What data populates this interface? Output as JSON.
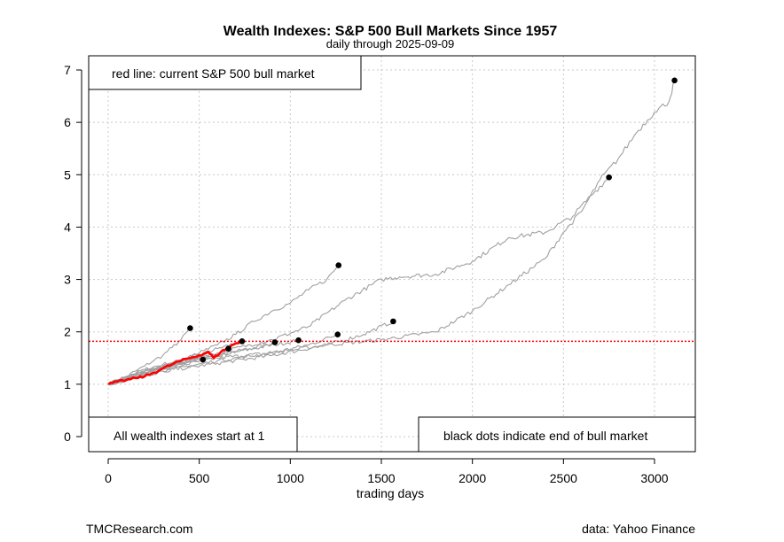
{
  "chart_data": {
    "type": "line",
    "title": "Wealth Indexes: S&P 500 Bull Markets Since 1957",
    "subtitle": "daily through 2025-09-09",
    "xlabel": "trading days",
    "ylabel": "",
    "xlim": [
      0,
      3200
    ],
    "ylim": [
      0,
      7
    ],
    "x_ticks": [
      "0",
      "500",
      "1000",
      "1500",
      "2000",
      "2500",
      "3000"
    ],
    "y_ticks": [
      "0",
      "1",
      "2",
      "3",
      "4",
      "5",
      "6",
      "7"
    ],
    "grid": true,
    "reference_line": {
      "y": 1.82,
      "color": "#ff0000",
      "style": "dotted"
    },
    "colors": {
      "historical": "#a0a0a0",
      "current": "#ff0000",
      "end_dot": "#000000"
    },
    "series": [
      {
        "current": false,
        "points": [
          [
            0,
            1.0
          ],
          [
            50,
            1.08
          ],
          [
            100,
            1.15
          ],
          [
            150,
            1.25
          ],
          [
            200,
            1.35
          ],
          [
            250,
            1.45
          ],
          [
            300,
            1.55
          ],
          [
            350,
            1.7
          ],
          [
            400,
            1.85
          ],
          [
            450,
            2.07
          ]
        ]
      },
      {
        "current": false,
        "points": [
          [
            0,
            1.0
          ],
          [
            100,
            1.15
          ],
          [
            200,
            1.28
          ],
          [
            300,
            1.38
          ],
          [
            400,
            1.45
          ],
          [
            450,
            1.55
          ],
          [
            520,
            1.47
          ]
        ]
      },
      {
        "current": false,
        "points": [
          [
            0,
            1.0
          ],
          [
            100,
            1.12
          ],
          [
            200,
            1.22
          ],
          [
            300,
            1.32
          ],
          [
            400,
            1.4
          ],
          [
            500,
            1.5
          ],
          [
            600,
            1.6
          ],
          [
            660,
            1.68
          ]
        ]
      },
      {
        "current": false,
        "points": [
          [
            0,
            1.0
          ],
          [
            150,
            1.18
          ],
          [
            300,
            1.35
          ],
          [
            450,
            1.5
          ],
          [
            600,
            1.68
          ],
          [
            735,
            1.82
          ]
        ]
      },
      {
        "current": false,
        "points": [
          [
            0,
            1.0
          ],
          [
            200,
            1.25
          ],
          [
            400,
            1.42
          ],
          [
            600,
            1.55
          ],
          [
            800,
            1.7
          ],
          [
            915,
            1.8
          ]
        ]
      },
      {
        "current": false,
        "points": [
          [
            0,
            1.0
          ],
          [
            200,
            1.2
          ],
          [
            400,
            1.38
          ],
          [
            600,
            1.55
          ],
          [
            800,
            1.68
          ],
          [
            1045,
            1.84
          ]
        ]
      },
      {
        "current": false,
        "points": [
          [
            0,
            1.0
          ],
          [
            200,
            1.25
          ],
          [
            400,
            1.45
          ],
          [
            500,
            1.6
          ],
          [
            600,
            1.75
          ],
          [
            700,
            1.95
          ],
          [
            800,
            2.2
          ],
          [
            900,
            2.4
          ],
          [
            1000,
            2.55
          ],
          [
            1100,
            2.8
          ],
          [
            1200,
            3.0
          ],
          [
            1265,
            3.27
          ]
        ]
      },
      {
        "current": false,
        "points": [
          [
            0,
            1.0
          ],
          [
            300,
            1.3
          ],
          [
            600,
            1.5
          ],
          [
            900,
            1.6
          ],
          [
            1100,
            1.75
          ],
          [
            1260,
            1.95
          ]
        ]
      },
      {
        "current": false,
        "points": [
          [
            0,
            1.0
          ],
          [
            300,
            1.25
          ],
          [
            600,
            1.4
          ],
          [
            900,
            1.55
          ],
          [
            1200,
            1.75
          ],
          [
            1400,
            1.95
          ],
          [
            1565,
            2.2
          ]
        ]
      },
      {
        "current": false,
        "points": [
          [
            0,
            1.0
          ],
          [
            300,
            1.3
          ],
          [
            600,
            1.6
          ],
          [
            900,
            1.85
          ],
          [
            1100,
            2.1
          ],
          [
            1300,
            2.6
          ],
          [
            1500,
            3.0
          ],
          [
            1600,
            3.05
          ],
          [
            1800,
            3.1
          ],
          [
            2000,
            3.35
          ],
          [
            2200,
            3.8
          ],
          [
            2400,
            3.9
          ],
          [
            2550,
            4.2
          ],
          [
            2650,
            4.6
          ],
          [
            2750,
            4.95
          ]
        ]
      },
      {
        "current": false,
        "points": [
          [
            0,
            1.0
          ],
          [
            300,
            1.25
          ],
          [
            600,
            1.45
          ],
          [
            900,
            1.6
          ],
          [
            1200,
            1.75
          ],
          [
            1500,
            1.85
          ],
          [
            1800,
            2.0
          ],
          [
            2000,
            2.4
          ],
          [
            2200,
            2.9
          ],
          [
            2400,
            3.4
          ],
          [
            2500,
            3.9
          ],
          [
            2600,
            4.3
          ],
          [
            2700,
            4.9
          ],
          [
            2800,
            5.3
          ],
          [
            2900,
            5.8
          ],
          [
            3000,
            6.2
          ],
          [
            3080,
            6.4
          ],
          [
            3110,
            6.8
          ]
        ]
      },
      {
        "current": true,
        "points": [
          [
            0,
            1.0
          ],
          [
            50,
            1.05
          ],
          [
            100,
            1.08
          ],
          [
            150,
            1.12
          ],
          [
            200,
            1.15
          ],
          [
            250,
            1.22
          ],
          [
            300,
            1.3
          ],
          [
            350,
            1.38
          ],
          [
            400,
            1.45
          ],
          [
            450,
            1.5
          ],
          [
            500,
            1.55
          ],
          [
            550,
            1.62
          ],
          [
            580,
            1.5
          ],
          [
            620,
            1.62
          ],
          [
            660,
            1.7
          ],
          [
            700,
            1.78
          ],
          [
            730,
            1.82
          ]
        ]
      }
    ],
    "end_points": [
      [
        450,
        2.07
      ],
      [
        520,
        1.47
      ],
      [
        660,
        1.68
      ],
      [
        735,
        1.82
      ],
      [
        915,
        1.8
      ],
      [
        1045,
        1.84
      ],
      [
        1265,
        3.27
      ],
      [
        1260,
        1.95
      ],
      [
        1565,
        2.2
      ],
      [
        2750,
        4.95
      ],
      [
        3110,
        6.8
      ]
    ]
  },
  "annotations": {
    "top_left": "red line: current S&P 500 bull market",
    "bottom_left": "All wealth indexes start at 1",
    "bottom_right": "black dots indicate end of bull market"
  },
  "footer": {
    "left": "TMCResearch.com",
    "right": "data: Yahoo Finance"
  }
}
